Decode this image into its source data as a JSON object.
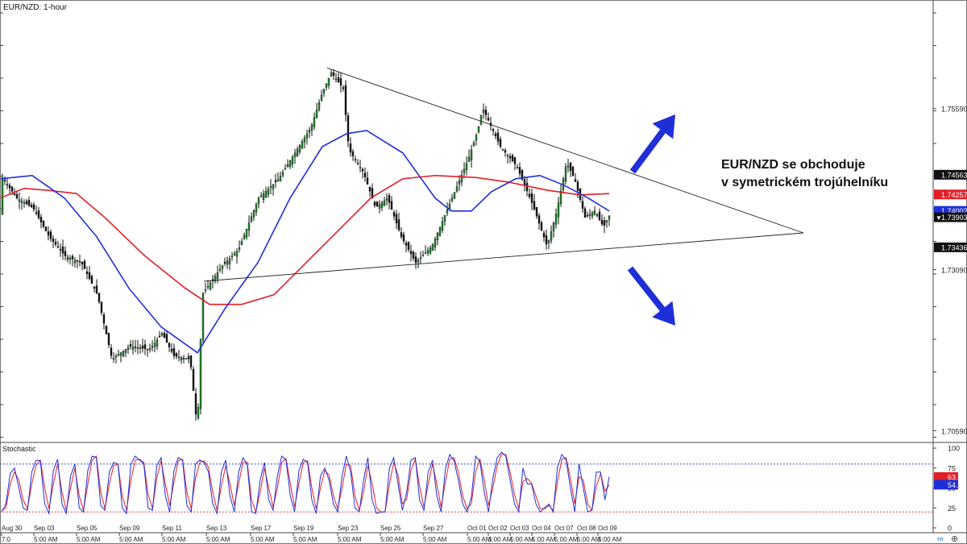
{
  "chart_data": [
    {
      "type": "candlestick",
      "title": "EUR/NZD: 1-hour",
      "annotation": [
        "EUR/NZD se obchoduje",
        "v symetrickém trojúhelníku"
      ],
      "ylim": [
        1.7042,
        1.7725
      ],
      "y_ticks": [
        "1.75590",
        "1.73090",
        "1.70590"
      ],
      "price_badges": [
        {
          "label": "1.74563",
          "value": 1.74563,
          "style": "dark"
        },
        {
          "label": "1.74257",
          "value": 1.74257,
          "style": "red"
        },
        {
          "label": "1.74002",
          "value": 1.74002,
          "style": "blue"
        },
        {
          "label": "1.73903",
          "value": 1.73903,
          "style": "dark-arrow"
        },
        {
          "label": "1.73436",
          "value": 1.73436,
          "style": "dark"
        }
      ],
      "x_labels_top": [
        "Aug 30",
        "Sep 03",
        "Sep 05",
        "Sep 09",
        "Sep 11",
        "Sep 13",
        "Sep 17",
        "Sep 19",
        "Sep 23",
        "Sep 25",
        "Sep 27",
        "Oct 01",
        "Oct 02",
        "Oct 03",
        "Oct 04",
        "Oct 07",
        "Oct 08",
        "Oct 09"
      ],
      "x_labels_bottom": [
        "7:0",
        "5:00 AM",
        "5:00 AM",
        "5:00 AM",
        "5:00 AM",
        "5:00 AM",
        "5:00 AM",
        "5:00 AM",
        "5:00 AM",
        "5:00 AM",
        "5:00 AM",
        "5:00 AM",
        "5:00 AM",
        "5:00 AM",
        "5:00 AM",
        "5:00 AM",
        "5:00 AM",
        "5:00 AM"
      ],
      "price_path": [
        [
          0,
          1.7455
        ],
        [
          20,
          1.742
        ],
        [
          40,
          1.7405
        ],
        [
          60,
          1.736
        ],
        [
          80,
          1.733
        ],
        [
          100,
          1.732
        ],
        [
          120,
          1.727
        ],
        [
          138,
          1.717
        ],
        [
          160,
          1.719
        ],
        [
          185,
          1.7185
        ],
        [
          200,
          1.721
        ],
        [
          215,
          1.7175
        ],
        [
          235,
          1.717
        ],
        [
          244,
          1.706
        ],
        [
          250,
          1.727
        ],
        [
          258,
          1.7285
        ],
        [
          275,
          1.7315
        ],
        [
          295,
          1.734
        ],
        [
          320,
          1.742
        ],
        [
          345,
          1.745
        ],
        [
          365,
          1.749
        ],
        [
          385,
          1.753
        ],
        [
          398,
          1.758
        ],
        [
          410,
          1.7615
        ],
        [
          425,
          1.759
        ],
        [
          432,
          1.7495
        ],
        [
          450,
          1.746
        ],
        [
          465,
          1.7405
        ],
        [
          480,
          1.742
        ],
        [
          497,
          1.736
        ],
        [
          515,
          1.732
        ],
        [
          535,
          1.7345
        ],
        [
          560,
          1.742
        ],
        [
          580,
          1.748
        ],
        [
          592,
          1.7525
        ],
        [
          598,
          1.756
        ],
        [
          620,
          1.75
        ],
        [
          640,
          1.747
        ],
        [
          660,
          1.741
        ],
        [
          678,
          1.7345
        ],
        [
          690,
          1.74
        ],
        [
          702,
          1.7475
        ],
        [
          712,
          1.745
        ],
        [
          725,
          1.739
        ],
        [
          737,
          1.74
        ],
        [
          748,
          1.7375
        ],
        [
          756,
          1.7395
        ]
      ],
      "blue_ma_path": [
        [
          0,
          1.745
        ],
        [
          40,
          1.7455
        ],
        [
          80,
          1.742
        ],
        [
          120,
          1.736
        ],
        [
          160,
          1.728
        ],
        [
          200,
          1.722
        ],
        [
          245,
          1.718
        ],
        [
          280,
          1.725
        ],
        [
          320,
          1.732
        ],
        [
          360,
          1.742
        ],
        [
          400,
          1.75
        ],
        [
          430,
          1.752
        ],
        [
          455,
          1.7525
        ],
        [
          500,
          1.749
        ],
        [
          540,
          1.742
        ],
        [
          560,
          1.74
        ],
        [
          585,
          1.74
        ],
        [
          610,
          1.743
        ],
        [
          640,
          1.745
        ],
        [
          670,
          1.7455
        ],
        [
          700,
          1.744
        ],
        [
          730,
          1.742
        ],
        [
          756,
          1.74
        ]
      ],
      "red_ma_path": [
        [
          0,
          1.742
        ],
        [
          30,
          1.7435
        ],
        [
          60,
          1.7432
        ],
        [
          95,
          1.7427
        ],
        [
          130,
          1.739
        ],
        [
          180,
          1.733
        ],
        [
          230,
          1.728
        ],
        [
          260,
          1.7255
        ],
        [
          300,
          1.7255
        ],
        [
          340,
          1.727
        ],
        [
          380,
          1.732
        ],
        [
          420,
          1.737
        ],
        [
          460,
          1.742
        ],
        [
          500,
          1.745
        ],
        [
          540,
          1.7455
        ],
        [
          590,
          1.7452
        ],
        [
          630,
          1.7445
        ],
        [
          680,
          1.7432
        ],
        [
          720,
          1.7425
        ],
        [
          756,
          1.7427
        ]
      ],
      "trendlines": [
        {
          "from": [
            406,
            1.7622
          ],
          "to": [
            997,
            1.7366
          ]
        },
        {
          "from": [
            253,
            1.7291
          ],
          "to": [
            997,
            1.7366
          ]
        }
      ],
      "arrows": [
        {
          "direction": "up"
        },
        {
          "direction": "down"
        }
      ]
    },
    {
      "type": "line",
      "title": "Stochastic",
      "ylim": [
        0,
        100
      ],
      "y_ticks": [
        "100",
        "75",
        "50",
        "25",
        "0"
      ],
      "levels": [
        80,
        20
      ],
      "badges": [
        {
          "label": "63.74",
          "style": "red"
        },
        {
          "label": "54.15",
          "style": "blue"
        }
      ],
      "k_values": [
        20,
        30,
        68,
        75,
        50,
        25,
        22,
        70,
        85,
        84,
        30,
        18,
        72,
        86,
        30,
        18,
        65,
        80,
        25,
        20,
        72,
        90,
        88,
        28,
        22,
        70,
        82,
        80,
        25,
        18,
        80,
        90,
        85,
        80,
        25,
        22,
        78,
        88,
        40,
        20,
        72,
        88,
        85,
        28,
        20,
        80,
        85,
        82,
        70,
        30,
        18,
        70,
        85,
        40,
        20,
        70,
        88,
        80,
        20,
        18,
        60,
        82,
        35,
        22,
        65,
        90,
        85,
        40,
        20,
        72,
        86,
        82,
        35,
        18,
        65,
        75,
        60,
        30,
        20,
        65,
        90,
        70,
        25,
        20,
        60,
        88,
        35,
        18,
        20,
        20,
        75,
        88,
        55,
        22,
        45,
        85,
        88,
        35,
        22,
        70,
        85,
        40,
        20,
        74,
        92,
        84,
        60,
        30,
        20,
        38,
        90,
        83,
        45,
        20,
        62,
        88,
        95,
        90,
        60,
        30,
        20,
        75,
        55,
        55,
        30,
        20,
        25,
        30,
        20,
        76,
        92,
        85,
        50,
        20,
        80,
        50,
        20,
        22,
        70,
        70,
        35,
        64
      ],
      "d_values": [
        22,
        25,
        55,
        70,
        60,
        35,
        24,
        55,
        78,
        85,
        50,
        24,
        55,
        80,
        45,
        22,
        50,
        75,
        40,
        22,
        55,
        85,
        90,
        45,
        24,
        55,
        78,
        80,
        40,
        22,
        60,
        85,
        86,
        82,
        42,
        24,
        62,
        84,
        55,
        28,
        58,
        84,
        86,
        45,
        24,
        62,
        82,
        84,
        76,
        45,
        22,
        52,
        78,
        55,
        28,
        55,
        82,
        82,
        35,
        20,
        45,
        75,
        50,
        26,
        50,
        82,
        87,
        55,
        26,
        56,
        82,
        84,
        50,
        24,
        50,
        72,
        66,
        40,
        24,
        50,
        80,
        78,
        40,
        22,
        45,
        78,
        55,
        25,
        20,
        20,
        55,
        82,
        66,
        30,
        36,
        72,
        86,
        52,
        26,
        55,
        80,
        55,
        26,
        58,
        86,
        88,
        70,
        40,
        24,
        30,
        70,
        86,
        60,
        28,
        50,
        78,
        92,
        92,
        70,
        42,
        24,
        58,
        62,
        56,
        40,
        24,
        24,
        28,
        22,
        58,
        86,
        88,
        62,
        30,
        64,
        60,
        30,
        22,
        52,
        68,
        46,
        54
      ]
    }
  ]
}
